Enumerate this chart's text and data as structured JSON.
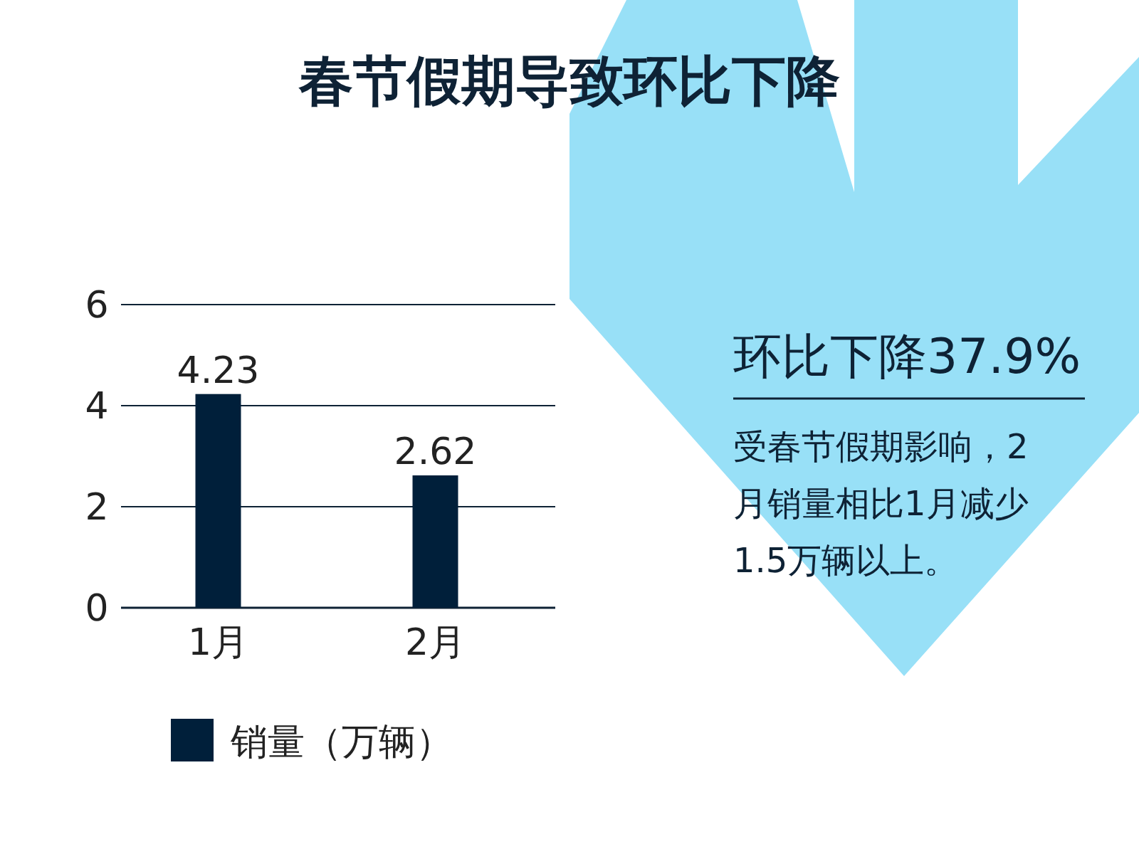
{
  "chart_data": {
    "type": "bar",
    "title": "春节假期导致环比下降",
    "categories": [
      "1月",
      "2月"
    ],
    "series": [
      {
        "name": "销量（万辆）",
        "color": "#001f3a",
        "values": [
          4.23,
          2.62
        ]
      }
    ],
    "ylim": [
      0,
      6
    ],
    "yticks": [
      0,
      2,
      4,
      6
    ],
    "grid": "y",
    "data_labels": true,
    "legend": "bottom",
    "annotations": [
      "环比下降37.9%",
      "受春节假期影响，2月销量相比1月减少1.5万辆以上。"
    ]
  }
}
